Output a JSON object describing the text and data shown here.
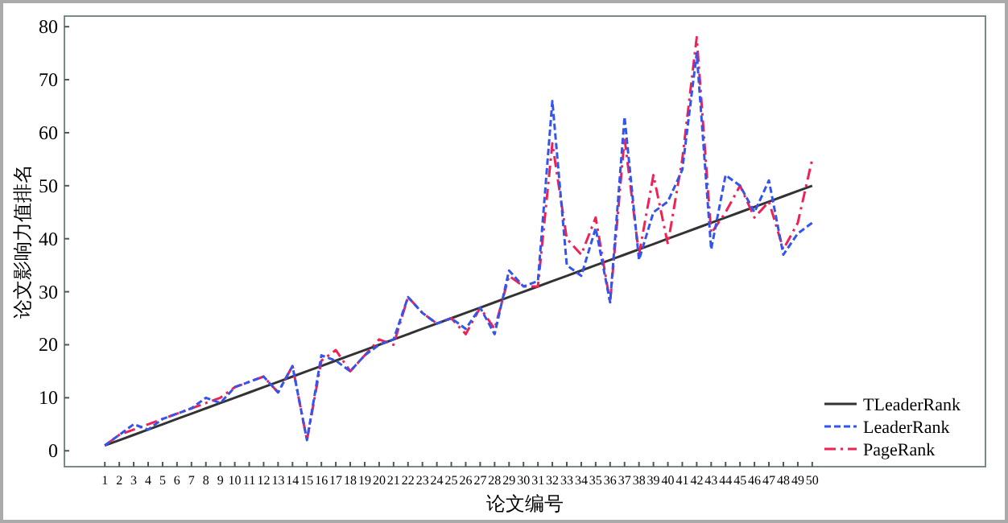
{
  "chart_data": {
    "type": "line",
    "xlabel": "论文编号",
    "ylabel": "论文影响力值排名",
    "x": [
      1,
      2,
      3,
      4,
      5,
      6,
      7,
      8,
      9,
      10,
      11,
      12,
      13,
      14,
      15,
      16,
      17,
      18,
      19,
      20,
      21,
      22,
      23,
      24,
      25,
      26,
      27,
      28,
      29,
      30,
      31,
      32,
      33,
      34,
      35,
      36,
      37,
      38,
      39,
      40,
      41,
      42,
      43,
      44,
      45,
      46,
      47,
      48,
      49,
      50
    ],
    "xlim": [
      -1.8,
      62
    ],
    "xticks": [
      1,
      2,
      3,
      4,
      5,
      6,
      7,
      8,
      9,
      10,
      11,
      12,
      13,
      14,
      15,
      16,
      17,
      18,
      19,
      20,
      21,
      22,
      23,
      24,
      25,
      26,
      27,
      28,
      29,
      30,
      31,
      32,
      33,
      34,
      35,
      36,
      37,
      38,
      39,
      40,
      41,
      42,
      43,
      44,
      45,
      46,
      47,
      48,
      49,
      50
    ],
    "ylim": [
      -3,
      82
    ],
    "yticks": [
      0,
      10,
      20,
      30,
      40,
      50,
      60,
      70,
      80
    ],
    "grid": false,
    "legend": "bottom right",
    "marker": "none",
    "series": [
      {
        "name": "TLeaderRank",
        "color": "#333333",
        "line_style": "solid",
        "values": [
          1,
          2,
          3,
          4,
          5,
          6,
          7,
          8,
          9,
          10,
          11,
          12,
          13,
          14,
          15,
          16,
          17,
          18,
          19,
          20,
          21,
          22,
          23,
          24,
          25,
          26,
          27,
          28,
          29,
          30,
          31,
          32,
          33,
          34,
          35,
          36,
          37,
          38,
          39,
          40,
          41,
          42,
          43,
          44,
          45,
          46,
          47,
          48,
          49,
          50
        ]
      },
      {
        "name": "LeaderRank",
        "color": "#3355ee",
        "line_style": "dashed",
        "values": [
          1,
          3,
          5,
          4,
          6,
          7,
          8,
          10,
          9,
          12,
          13,
          14,
          11,
          16,
          2,
          18,
          17,
          15,
          18,
          20,
          21,
          29,
          26,
          24,
          25,
          23,
          27,
          22,
          34,
          31,
          32,
          66,
          35,
          33,
          42,
          28,
          63,
          36,
          45,
          47,
          53,
          75,
          38,
          52,
          50,
          45,
          51,
          37,
          41,
          43
        ]
      },
      {
        "name": "PageRank",
        "color": "#ee2255",
        "line_style": "dashdot",
        "values": [
          1,
          3,
          4,
          5,
          6,
          7,
          8,
          9,
          10,
          12,
          13,
          14,
          11,
          16,
          2,
          17,
          19,
          15,
          18,
          21,
          20,
          29,
          26,
          24,
          25,
          22,
          27,
          23,
          33,
          31,
          31,
          58,
          40,
          37,
          44,
          28,
          59,
          37,
          52,
          39,
          55,
          78,
          41,
          45,
          50,
          44,
          47,
          38,
          43,
          55
        ]
      }
    ]
  }
}
